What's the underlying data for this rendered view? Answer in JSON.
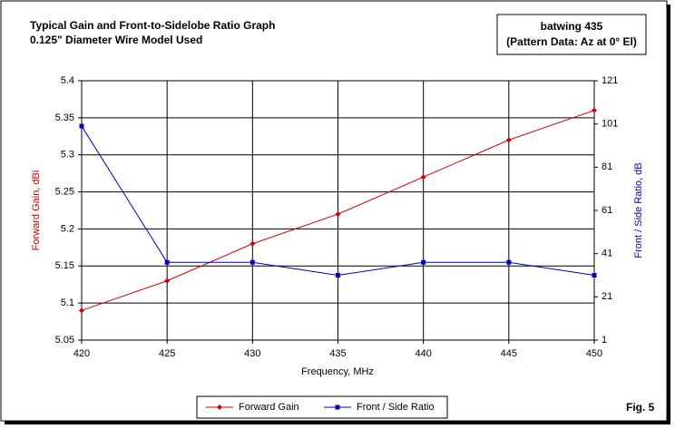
{
  "chart_data": {
    "type": "line",
    "title": "Typical Gain and Front-to-Sidelobe Ratio Graph",
    "subtitle": "0.125\" Diameter Wire Model Used",
    "annotations": [
      "batwing 435",
      "(Pattern Data: Az at 0° El)"
    ],
    "figure_label": "Fig. 5",
    "x_label": "Frequency, MHz",
    "y_label": "Forward Gain, dBi",
    "y2_label": "Front / Side Ratio, dB",
    "x": [
      420,
      425,
      430,
      435,
      440,
      445,
      450
    ],
    "xlim": [
      420,
      450
    ],
    "xticks": [
      420,
      425,
      430,
      435,
      440,
      445,
      450
    ],
    "ylim": [
      5.05,
      5.4
    ],
    "yticks": [
      5.05,
      5.1,
      5.15,
      5.2,
      5.25,
      5.3,
      5.35,
      5.4
    ],
    "y2lim": [
      1,
      121
    ],
    "y2ticks": [
      1,
      21,
      41,
      61,
      81,
      101,
      121
    ],
    "grid": true,
    "legend": "bottom",
    "series": [
      {
        "name": "Forward Gain",
        "color": "#d00000",
        "marker": "diamond",
        "values": [
          5.09,
          5.13,
          5.18,
          5.22,
          5.27,
          5.32,
          5.36
        ]
      },
      {
        "name": "Front / Side Ratio",
        "color": "#0000c0",
        "marker": "square",
        "axis": "y2",
        "values": [
          100,
          37,
          37,
          31,
          37,
          37,
          31
        ]
      }
    ]
  }
}
